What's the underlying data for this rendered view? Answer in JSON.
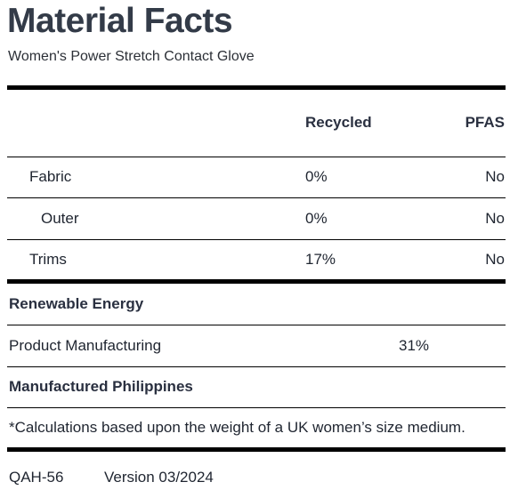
{
  "title": "Material Facts",
  "subtitle": "Women's Power Stretch Contact Glove",
  "columns": {
    "recycled": "Recycled",
    "pfas": "PFAS"
  },
  "rows": [
    {
      "label": "Fabric",
      "recycled": "0%",
      "pfas": "No"
    },
    {
      "label": "Outer",
      "recycled": "0%",
      "pfas": "No"
    },
    {
      "label": "Trims",
      "recycled": "17%",
      "pfas": "No"
    }
  ],
  "renewable": {
    "heading": "Renewable Energy",
    "label": "Product Manufacturing",
    "value": "31%"
  },
  "manufactured": "Manufactured Philippines",
  "footnote": "*Calculations based upon the weight of a UK women’s size medium.",
  "footer": {
    "code": "QAH-56",
    "version": "Version 03/2024"
  }
}
